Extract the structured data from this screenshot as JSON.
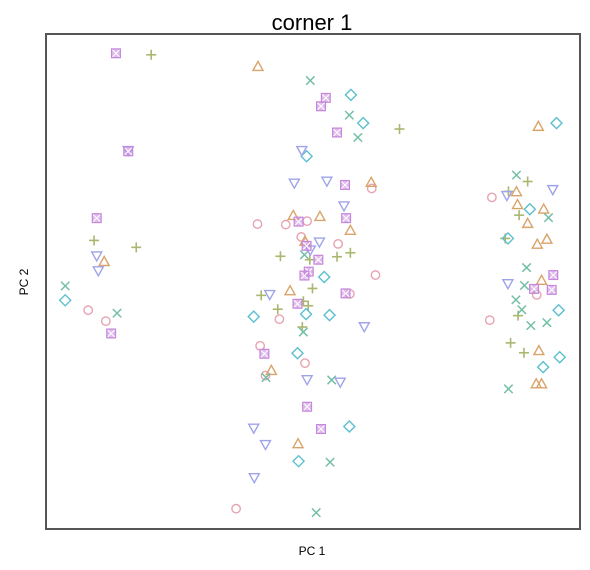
{
  "chart_data": {
    "type": "scatter",
    "title": "corner 1",
    "xlabel": "PC 1",
    "ylabel": "PC 2",
    "xlim": [
      0,
      100
    ],
    "ylim": [
      0,
      100
    ],
    "grid": false,
    "legend": "none",
    "series": [
      {
        "shape": "circle",
        "color": "#E7A3B1",
        "points": [
          {
            "x": 7.9,
            "y": 44.2
          },
          {
            "x": 11.2,
            "y": 42.0
          },
          {
            "x": 39.6,
            "y": 61.6
          },
          {
            "x": 43.7,
            "y": 42.4
          },
          {
            "x": 48.9,
            "y": 62.2
          },
          {
            "x": 40.1,
            "y": 37.0
          },
          {
            "x": 47.8,
            "y": 59.0
          },
          {
            "x": 35.6,
            "y": 4.1
          },
          {
            "x": 48.5,
            "y": 33.5
          },
          {
            "x": 56.9,
            "y": 47.5
          },
          {
            "x": 61.0,
            "y": 68.8
          },
          {
            "x": 54.7,
            "y": 57.6
          },
          {
            "x": 61.7,
            "y": 51.3
          },
          {
            "x": 83.5,
            "y": 67.0
          },
          {
            "x": 91.9,
            "y": 47.3
          },
          {
            "x": 83.1,
            "y": 42.2
          },
          {
            "x": 41.1,
            "y": 31.0
          },
          {
            "x": 44.9,
            "y": 61.5
          }
        ]
      },
      {
        "shape": "triangle-up",
        "color": "#D9A36A",
        "points": [
          {
            "x": 10.9,
            "y": 54.0
          },
          {
            "x": 39.7,
            "y": 93.4
          },
          {
            "x": 46.3,
            "y": 63.3
          },
          {
            "x": 48.5,
            "y": 58.1
          },
          {
            "x": 51.3,
            "y": 63.1
          },
          {
            "x": 45.7,
            "y": 48.1
          },
          {
            "x": 42.2,
            "y": 32.0
          },
          {
            "x": 57.0,
            "y": 60.3
          },
          {
            "x": 60.9,
            "y": 70.0
          },
          {
            "x": 47.2,
            "y": 17.2
          },
          {
            "x": 88.1,
            "y": 68.1
          },
          {
            "x": 88.3,
            "y": 65.5
          },
          {
            "x": 92.0,
            "y": 57.5
          },
          {
            "x": 92.2,
            "y": 81.3
          },
          {
            "x": 93.2,
            "y": 64.6
          },
          {
            "x": 92.8,
            "y": 50.2
          },
          {
            "x": 92.3,
            "y": 36.0
          },
          {
            "x": 91.8,
            "y": 29.3
          },
          {
            "x": 92.8,
            "y": 29.3
          },
          {
            "x": 93.8,
            "y": 58.5
          },
          {
            "x": 90.2,
            "y": 61.7
          }
        ]
      },
      {
        "shape": "plus",
        "color": "#A9B76F",
        "points": [
          {
            "x": 19.7,
            "y": 95.8
          },
          {
            "x": 9.0,
            "y": 58.3
          },
          {
            "x": 16.9,
            "y": 56.9
          },
          {
            "x": 43.9,
            "y": 55.1
          },
          {
            "x": 49.9,
            "y": 48.6
          },
          {
            "x": 49.1,
            "y": 45.1
          },
          {
            "x": 48.0,
            "y": 40.8
          },
          {
            "x": 49.4,
            "y": 54.4
          },
          {
            "x": 54.5,
            "y": 55.0
          },
          {
            "x": 57.0,
            "y": 55.8
          },
          {
            "x": 66.2,
            "y": 80.8
          },
          {
            "x": 40.3,
            "y": 47.2
          },
          {
            "x": 86.0,
            "y": 58.7
          },
          {
            "x": 86.6,
            "y": 68.2
          },
          {
            "x": 88.6,
            "y": 63.4
          },
          {
            "x": 90.2,
            "y": 70.2
          },
          {
            "x": 88.4,
            "y": 43.1
          },
          {
            "x": 89.5,
            "y": 35.6
          },
          {
            "x": 87.0,
            "y": 37.6
          },
          {
            "x": 43.4,
            "y": 44.4
          },
          {
            "x": 48.2,
            "y": 46.0
          }
        ]
      },
      {
        "shape": "x",
        "color": "#74BFA6",
        "points": [
          {
            "x": 3.6,
            "y": 49.1
          },
          {
            "x": 13.3,
            "y": 43.6
          },
          {
            "x": 49.5,
            "y": 90.6
          },
          {
            "x": 56.8,
            "y": 83.6
          },
          {
            "x": 58.4,
            "y": 79.1
          },
          {
            "x": 48.4,
            "y": 55.4
          },
          {
            "x": 41.2,
            "y": 30.6
          },
          {
            "x": 53.5,
            "y": 30.1
          },
          {
            "x": 53.2,
            "y": 13.5
          },
          {
            "x": 50.6,
            "y": 3.3
          },
          {
            "x": 88.1,
            "y": 71.5
          },
          {
            "x": 90.0,
            "y": 52.8
          },
          {
            "x": 89.6,
            "y": 49.2
          },
          {
            "x": 88.0,
            "y": 46.3
          },
          {
            "x": 90.8,
            "y": 41.1
          },
          {
            "x": 94.1,
            "y": 62.9
          },
          {
            "x": 86.6,
            "y": 28.3
          },
          {
            "x": 48.2,
            "y": 39.8
          },
          {
            "x": 93.8,
            "y": 41.7
          },
          {
            "x": 89.1,
            "y": 44.3
          }
        ]
      },
      {
        "shape": "diamond",
        "color": "#5CBFCF",
        "points": [
          {
            "x": 3.6,
            "y": 46.2
          },
          {
            "x": 38.9,
            "y": 42.9
          },
          {
            "x": 48.7,
            "y": 43.4
          },
          {
            "x": 57.1,
            "y": 87.7
          },
          {
            "x": 59.4,
            "y": 82.0
          },
          {
            "x": 48.8,
            "y": 75.3
          },
          {
            "x": 52.1,
            "y": 50.9
          },
          {
            "x": 53.1,
            "y": 43.2
          },
          {
            "x": 47.1,
            "y": 35.5
          },
          {
            "x": 56.8,
            "y": 20.7
          },
          {
            "x": 47.3,
            "y": 13.7
          },
          {
            "x": 95.6,
            "y": 82.0
          },
          {
            "x": 90.6,
            "y": 64.6
          },
          {
            "x": 86.5,
            "y": 58.7
          },
          {
            "x": 96.0,
            "y": 44.2
          },
          {
            "x": 96.2,
            "y": 34.7
          },
          {
            "x": 93.1,
            "y": 32.7
          }
        ]
      },
      {
        "shape": "triangle-down",
        "color": "#9FA3EA",
        "points": [
          {
            "x": 15.4,
            "y": 76.5
          },
          {
            "x": 9.5,
            "y": 55.2
          },
          {
            "x": 9.8,
            "y": 52.2
          },
          {
            "x": 47.9,
            "y": 76.5
          },
          {
            "x": 46.5,
            "y": 69.9
          },
          {
            "x": 52.6,
            "y": 70.3
          },
          {
            "x": 55.8,
            "y": 65.3
          },
          {
            "x": 51.2,
            "y": 58.0
          },
          {
            "x": 49.5,
            "y": 56.4
          },
          {
            "x": 41.9,
            "y": 47.4
          },
          {
            "x": 59.6,
            "y": 40.9
          },
          {
            "x": 48.9,
            "y": 30.2
          },
          {
            "x": 55.1,
            "y": 29.7
          },
          {
            "x": 38.9,
            "y": 20.4
          },
          {
            "x": 41.1,
            "y": 17.1
          },
          {
            "x": 39.0,
            "y": 10.4
          },
          {
            "x": 86.3,
            "y": 67.4
          },
          {
            "x": 94.9,
            "y": 68.6
          },
          {
            "x": 86.5,
            "y": 49.6
          }
        ]
      },
      {
        "shape": "square-x",
        "color": "#C586DB",
        "points": [
          {
            "x": 13.1,
            "y": 96.1
          },
          {
            "x": 15.4,
            "y": 76.3
          },
          {
            "x": 9.5,
            "y": 62.8
          },
          {
            "x": 12.2,
            "y": 39.5
          },
          {
            "x": 52.4,
            "y": 87.1
          },
          {
            "x": 51.5,
            "y": 85.4
          },
          {
            "x": 54.5,
            "y": 80.1
          },
          {
            "x": 56.0,
            "y": 69.5
          },
          {
            "x": 56.2,
            "y": 62.8
          },
          {
            "x": 47.3,
            "y": 62.1
          },
          {
            "x": 48.8,
            "y": 57.2
          },
          {
            "x": 51.0,
            "y": 54.4
          },
          {
            "x": 49.2,
            "y": 52.0
          },
          {
            "x": 48.4,
            "y": 51.2
          },
          {
            "x": 56.1,
            "y": 47.6
          },
          {
            "x": 40.9,
            "y": 35.4
          },
          {
            "x": 48.9,
            "y": 24.7
          },
          {
            "x": 51.5,
            "y": 20.2
          },
          {
            "x": 95.0,
            "y": 51.3
          },
          {
            "x": 91.4,
            "y": 48.5
          },
          {
            "x": 94.7,
            "y": 48.3
          },
          {
            "x": 47.1,
            "y": 45.5
          }
        ]
      }
    ]
  }
}
